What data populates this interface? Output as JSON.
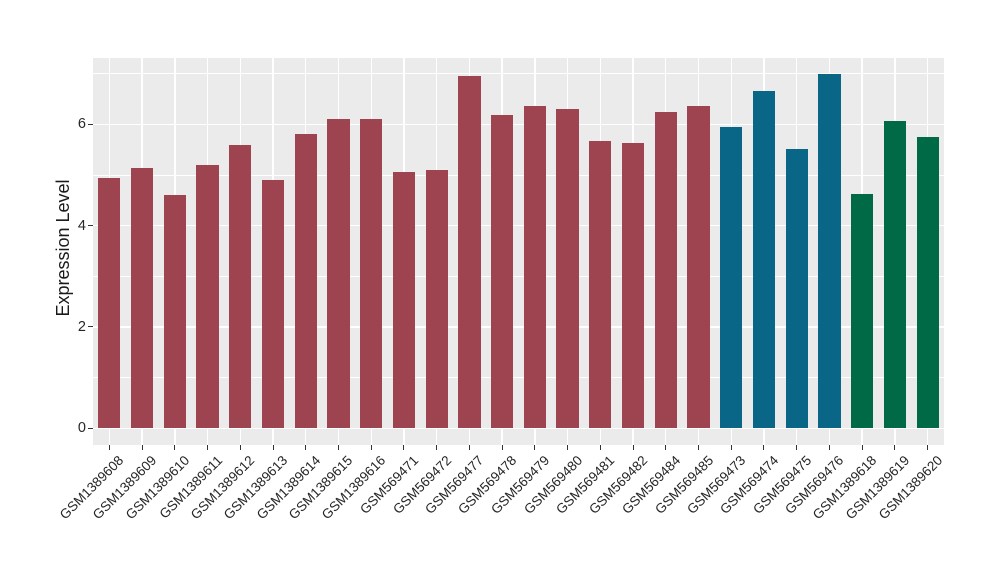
{
  "figure": {
    "background": "#FFFFFF",
    "panel_background": "#EBEBEB",
    "gridline_color": "#FFFFFF",
    "tick_color": "#333333",
    "text_color": "#262626"
  },
  "chart_data": {
    "type": "bar",
    "xlabel": "",
    "ylabel": "Expression Level",
    "ylim": [
      -0.33,
      7.31
    ],
    "yticks": [
      0,
      2,
      4,
      6
    ],
    "yticks_minor": [
      1,
      3,
      5,
      7
    ],
    "grid": true,
    "legend": "none",
    "categories": [
      "GSM1389608",
      "GSM1389609",
      "GSM1389610",
      "GSM1389611",
      "GSM1389612",
      "GSM1389613",
      "GSM1389614",
      "GSM1389615",
      "GSM1389616",
      "GSM569471",
      "GSM569472",
      "GSM569477",
      "GSM569478",
      "GSM569479",
      "GSM569480",
      "GSM569481",
      "GSM569482",
      "GSM569484",
      "GSM569485",
      "GSM569473",
      "GSM569474",
      "GSM569475",
      "GSM569476",
      "GSM1389618",
      "GSM1389619",
      "GSM1389620"
    ],
    "values": [
      4.95,
      5.13,
      4.6,
      5.19,
      5.59,
      4.9,
      5.81,
      6.1,
      6.11,
      5.06,
      5.09,
      6.95,
      6.19,
      6.36,
      6.31,
      5.68,
      5.63,
      6.24,
      6.36,
      5.94,
      6.66,
      5.52,
      7.0,
      4.62,
      6.06,
      5.75
    ],
    "bar_groups": [
      "group1",
      "group1",
      "group1",
      "group1",
      "group1",
      "group1",
      "group1",
      "group1",
      "group1",
      "group1",
      "group1",
      "group1",
      "group1",
      "group1",
      "group1",
      "group1",
      "group1",
      "group1",
      "group1",
      "group2",
      "group2",
      "group2",
      "group2",
      "group3",
      "group3",
      "group3"
    ],
    "group_colors": {
      "group1": "#9E4450",
      "group2": "#0A6687",
      "group3": "#006946"
    }
  }
}
